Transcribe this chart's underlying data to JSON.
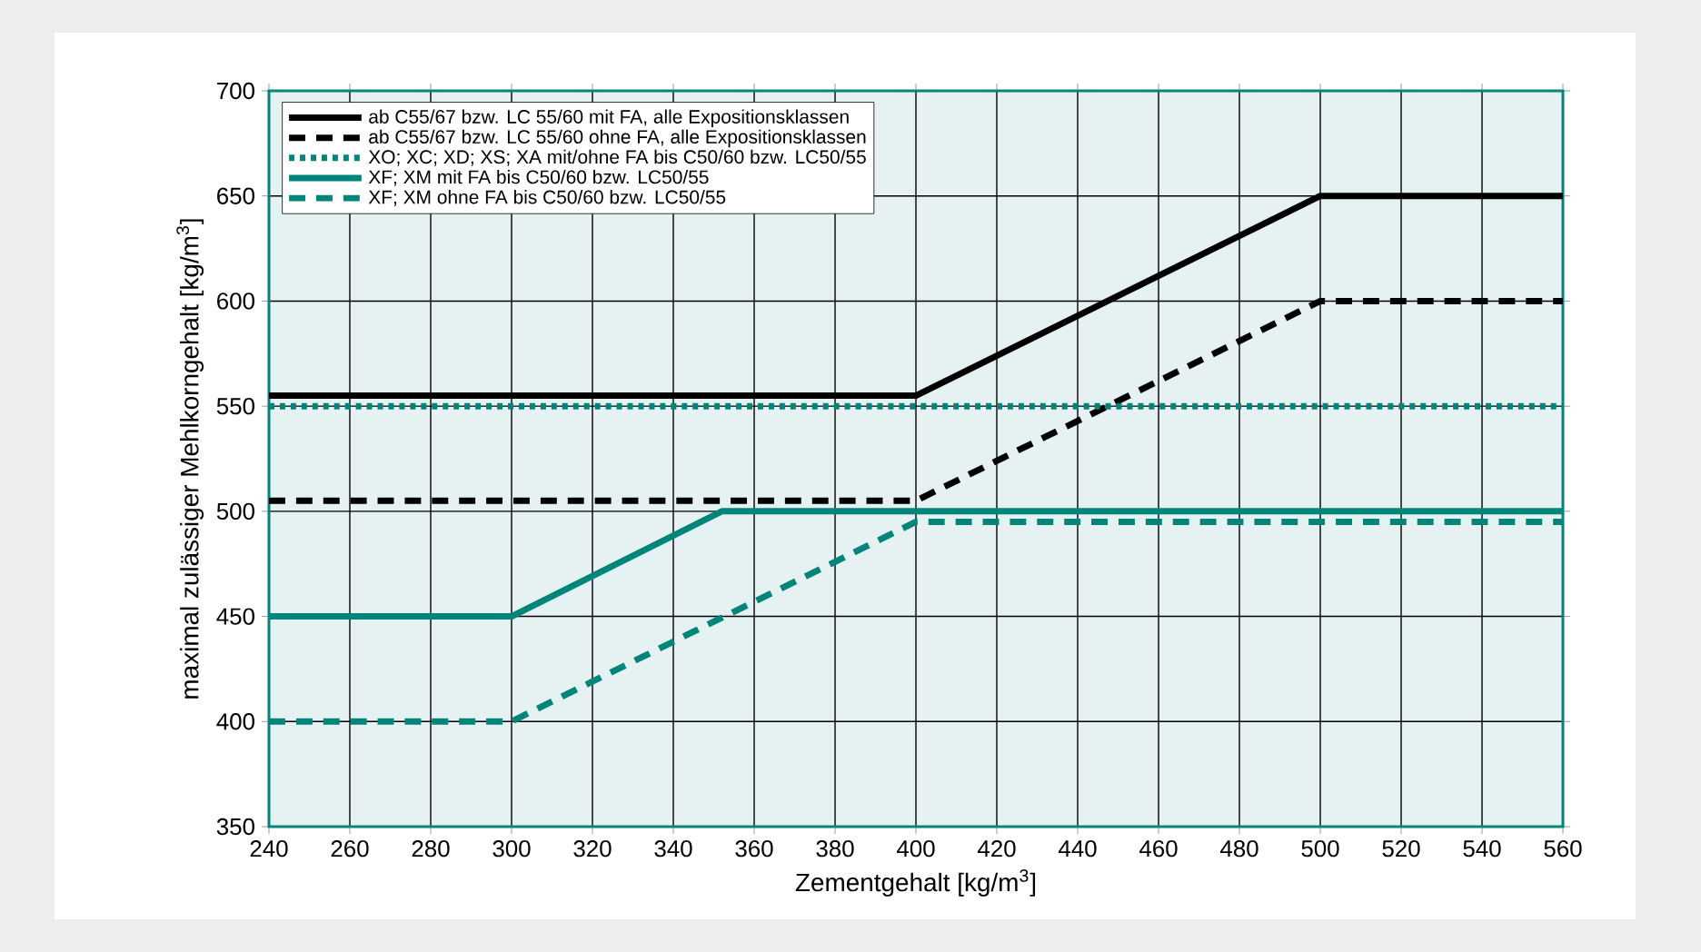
{
  "chart_data": {
    "type": "line",
    "xlabel": "Zementgehalt [kg/m$^{3}$]",
    "ylabel": "maximal zulässiger Mehlkorngehalt [kg/m$^{3}$]",
    "xlim": [
      240,
      560
    ],
    "ylim": [
      350,
      700
    ],
    "xticks": [
      240,
      260,
      280,
      300,
      320,
      340,
      360,
      380,
      400,
      420,
      440,
      460,
      480,
      500,
      520,
      540,
      560
    ],
    "yticks": [
      350,
      400,
      450,
      500,
      550,
      600,
      650,
      700
    ],
    "grid": true,
    "legend": "top left",
    "marker": "none",
    "series": [
      {
        "name": "ab C55/67 bzw. LC 55/60 mit FA, alle Expositionsklassen",
        "color": "#000000",
        "line_style": "solid",
        "x": [
          240,
          400,
          500,
          560
        ],
        "values": [
          555,
          555,
          650,
          650
        ]
      },
      {
        "name": "ab C55/67 bzw. LC 55/60 ohne FA, alle Expositionsklassen",
        "color": "#000000",
        "line_style": "dashed",
        "x": [
          240,
          400,
          500,
          560
        ],
        "values": [
          505,
          505,
          600,
          600
        ]
      },
      {
        "name": "XO; XC; XD; XS; XA mit/ohne FA bis C50/60 bzw. LC50/55",
        "color": "#00857a",
        "line_style": "dotted",
        "x": [
          240,
          560
        ],
        "values": [
          550,
          550
        ]
      },
      {
        "name": "XF; XM mit FA bis C50/60 bzw. LC50/55",
        "color": "#00857a",
        "line_style": "solid",
        "x": [
          240,
          300,
          352,
          560
        ],
        "values": [
          450,
          450,
          500,
          500
        ]
      },
      {
        "name": "XF; XM ohne FA bis C50/60 bzw. LC50/55",
        "color": "#00857a",
        "line_style": "dashed",
        "x": [
          240,
          300,
          400,
          560
        ],
        "values": [
          400,
          400,
          495,
          495
        ]
      }
    ]
  }
}
